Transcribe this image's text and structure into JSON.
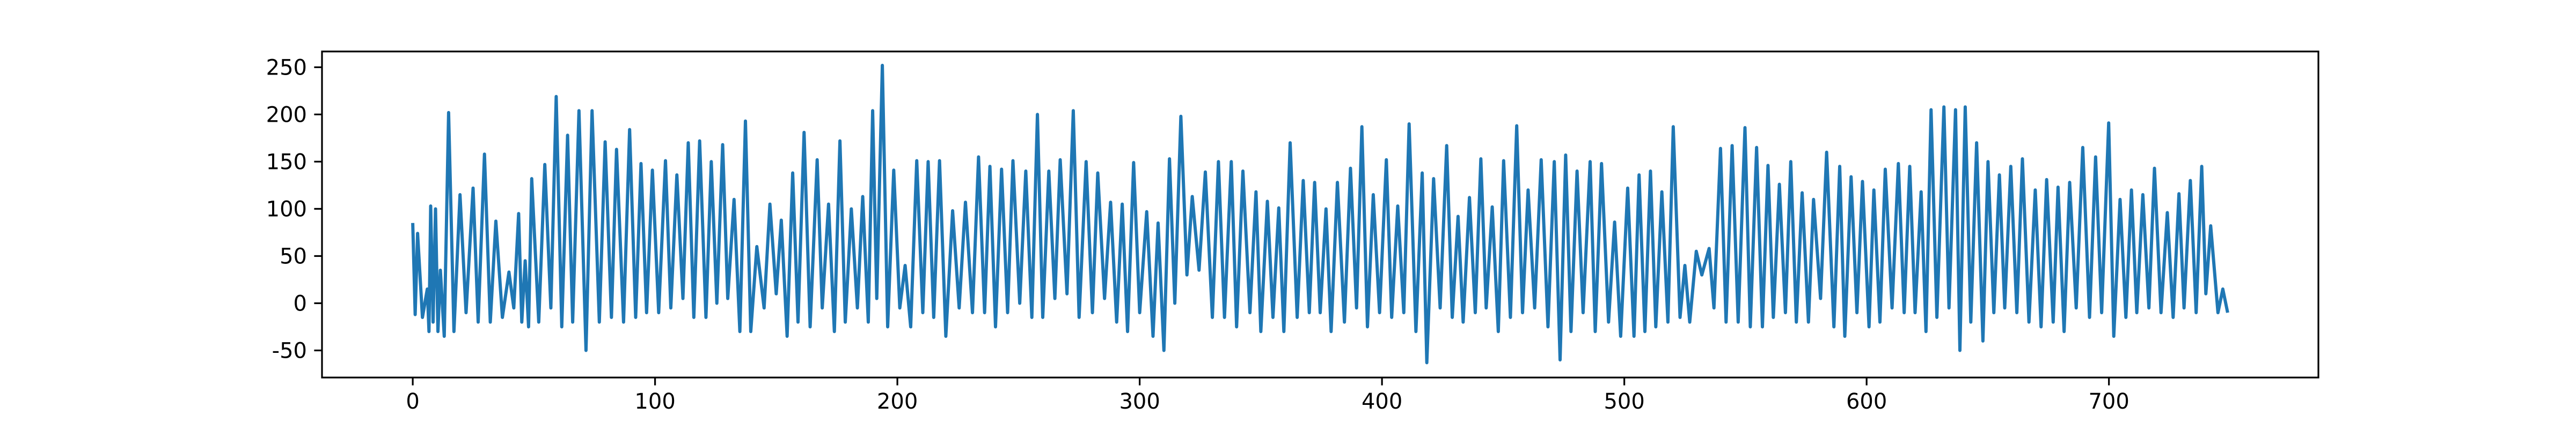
{
  "chart_data": {
    "type": "line",
    "xlim": [
      -37.45,
      786.45
    ],
    "ylim": [
      -78.7,
      266.7
    ],
    "xticks": [
      0,
      100,
      200,
      300,
      400,
      500,
      600,
      700
    ],
    "yticks": [
      -50,
      0,
      50,
      100,
      150,
      200,
      250
    ],
    "series": [
      {
        "color": "#1f77b4",
        "x": [
          0,
          1,
          2,
          4,
          6,
          6.7,
          7.4,
          8.4,
          9.4,
          10.4,
          11.4,
          13,
          14.8,
          17,
          19.5,
          22,
          24.9,
          27,
          29.6,
          32,
          34.3,
          37,
          39.7,
          41.7,
          43.7,
          45,
          46.4,
          47.8,
          49.1,
          52,
          54.5,
          57,
          59.2,
          61.5,
          63.9,
          66,
          68.6,
          71.5,
          74,
          77,
          79.4,
          82,
          84.1,
          87,
          89.5,
          92,
          94.2,
          96.5,
          98.9,
          101.5,
          104.3,
          106.5,
          109,
          111.5,
          113.7,
          116,
          118.4,
          121,
          123.2,
          125.5,
          127.9,
          130,
          132.6,
          135,
          137.3,
          139.5,
          142,
          145,
          147.4,
          150,
          152.1,
          154.5,
          156.8,
          159,
          161.5,
          164,
          166.9,
          169,
          171.6,
          174,
          176.3,
          178.5,
          181,
          183.5,
          185.7,
          188,
          189.8,
          191.5,
          193.8,
          196,
          198.5,
          201,
          203.2,
          205.5,
          208,
          210.5,
          212.7,
          215,
          217.4,
          220,
          222.8,
          225.5,
          228.1,
          231,
          233.5,
          236,
          238.2,
          240.5,
          243,
          245.5,
          247.7,
          250.5,
          253,
          255.5,
          257.8,
          260,
          262.5,
          265,
          267.2,
          270,
          272.6,
          275,
          277.9,
          280.5,
          282.7,
          285.5,
          288,
          290.5,
          292.8,
          295,
          297.5,
          300,
          302.9,
          305.5,
          307.6,
          310,
          312.3,
          314.5,
          317,
          319.5,
          321.7,
          324.5,
          327.1,
          330,
          332.5,
          335,
          337.8,
          340,
          342.6,
          345.5,
          348,
          350,
          352.7,
          355,
          357.4,
          359.5,
          362.1,
          365,
          367.5,
          370,
          372.2,
          374.5,
          376.9,
          379,
          381.6,
          384.5,
          387,
          389.5,
          391.7,
          394,
          396.4,
          399,
          401.8,
          404,
          406.5,
          409,
          411.2,
          414,
          416.6,
          418.5,
          421.3,
          424,
          426.7,
          429,
          431.4,
          433.5,
          436.1,
          438.5,
          440.8,
          443,
          445.5,
          448,
          450.2,
          453,
          455.6,
          458,
          460.3,
          463,
          465.7,
          468.5,
          471.1,
          473.5,
          475.8,
          478,
          480.5,
          483,
          485.9,
          488,
          490.6,
          493.5,
          496,
          498.5,
          501.4,
          504,
          506.1,
          508.5,
          510.8,
          513,
          515.5,
          518,
          520.2,
          523,
          525,
          527,
          529.7,
          532,
          535,
          537,
          539.7,
          542,
          544.5,
          547,
          549.8,
          552,
          554.6,
          557,
          559.3,
          561.5,
          564,
          566.5,
          568.7,
          571,
          573.4,
          576,
          578.1,
          581,
          583.5,
          586.5,
          588.9,
          591,
          593.6,
          596,
          598.3,
          601,
          603,
          605.5,
          607.7,
          610.5,
          613.1,
          615.5,
          617.8,
          620,
          622.5,
          624.5,
          626.6,
          629,
          631.9,
          634,
          636.7,
          638.5,
          640.7,
          643,
          645.4,
          648,
          650.1,
          652.5,
          654.8,
          657,
          659.5,
          662,
          664.3,
          667,
          669.6,
          672,
          674.3,
          677,
          679,
          681.5,
          683.8,
          686.5,
          689.2,
          692,
          694.5,
          697,
          699.9,
          702,
          704.6,
          707,
          709.3,
          711.5,
          714,
          716.5,
          718.8,
          721.5,
          724.1,
          726.5,
          728.9,
          731,
          733.6,
          736,
          738.3,
          740,
          742,
          745,
          747,
          749
        ],
        "values": [
          85,
          -12,
          74,
          -15,
          15,
          -30,
          103,
          -20,
          100,
          -30,
          35,
          -35,
          202,
          -30,
          115,
          -10,
          122,
          -20,
          158,
          -20,
          87,
          -15,
          33,
          -5,
          95,
          -20,
          45,
          -25,
          132,
          -20,
          147,
          -5,
          219,
          -25,
          178,
          -20,
          204,
          -50,
          204,
          -20,
          171,
          -15,
          163,
          -20,
          184,
          -15,
          148,
          -10,
          141,
          -10,
          151,
          -5,
          136,
          5,
          170,
          -15,
          172,
          -15,
          150,
          0,
          168,
          5,
          110,
          -30,
          193,
          -30,
          60,
          -5,
          105,
          10,
          88,
          -35,
          138,
          -20,
          181,
          -25,
          152,
          -5,
          105,
          -30,
          172,
          -20,
          100,
          -5,
          113,
          -20,
          204,
          5,
          252,
          -25,
          141,
          -5,
          40,
          -25,
          151,
          -10,
          150,
          -15,
          151,
          -35,
          98,
          -5,
          107,
          -10,
          155,
          -10,
          145,
          -25,
          142,
          -10,
          151,
          0,
          140,
          -15,
          200,
          -15,
          140,
          5,
          152,
          10,
          204,
          -15,
          150,
          -10,
          138,
          5,
          107,
          -20,
          105,
          -30,
          149,
          -10,
          97,
          -35,
          85,
          -50,
          153,
          0,
          198,
          30,
          113,
          35,
          139,
          -15,
          150,
          -15,
          150,
          -25,
          140,
          -10,
          118,
          -30,
          108,
          -15,
          101,
          -30,
          170,
          -15,
          130,
          -10,
          128,
          -10,
          100,
          -30,
          128,
          -20,
          143,
          -5,
          187,
          -25,
          115,
          -10,
          152,
          -15,
          103,
          -10,
          190,
          -30,
          138,
          -63,
          132,
          -5,
          167,
          -15,
          92,
          -20,
          112,
          -10,
          153,
          -5,
          102,
          -30,
          151,
          -15,
          188,
          -10,
          120,
          -5,
          152,
          -25,
          150,
          -60,
          157,
          -30,
          140,
          -10,
          150,
          -30,
          148,
          -20,
          86,
          -35,
          122,
          -35,
          136,
          -30,
          140,
          -25,
          118,
          -20,
          187,
          -15,
          40,
          -20,
          55,
          30,
          58,
          -5,
          164,
          -20,
          167,
          -20,
          186,
          -25,
          165,
          -25,
          146,
          -15,
          126,
          -10,
          150,
          -20,
          117,
          -20,
          110,
          5,
          160,
          -25,
          145,
          -35,
          134,
          -10,
          129,
          -25,
          120,
          -20,
          142,
          -5,
          148,
          -10,
          145,
          -10,
          118,
          -30,
          205,
          -15,
          208,
          -5,
          205,
          -50,
          208,
          -20,
          170,
          -40,
          150,
          -10,
          136,
          -5,
          145,
          -10,
          153,
          -20,
          120,
          -25,
          131,
          -20,
          123,
          -30,
          128,
          -5,
          165,
          -15,
          155,
          -10,
          191,
          -35,
          110,
          -15,
          120,
          -10,
          115,
          -5,
          143,
          -10,
          96,
          -15,
          116,
          -5,
          130,
          -10,
          145,
          10,
          82,
          -10,
          15,
          -10
        ]
      }
    ]
  }
}
